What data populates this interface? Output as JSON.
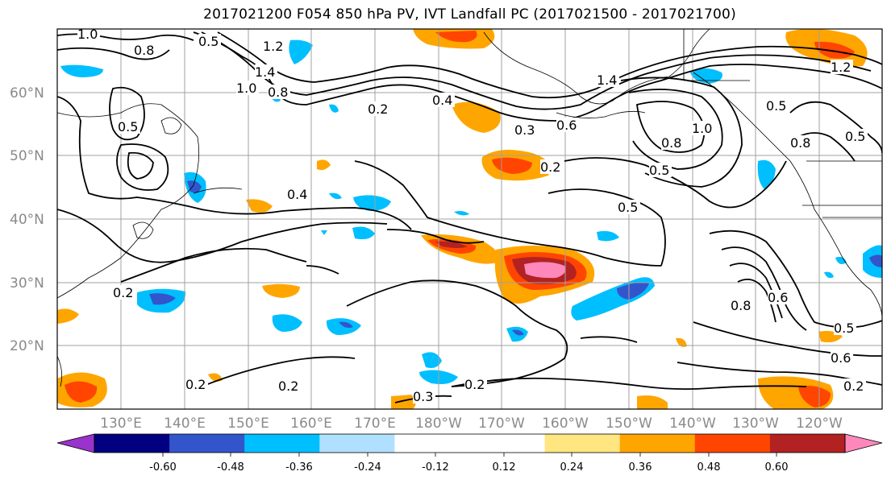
{
  "title": "2017021200 F054 850 hPa PV, IVT Landfall PC (2017021500 - 2017021700)",
  "lat_labels": [
    "60°N",
    "50°N",
    "40°N",
    "30°N",
    "20°N"
  ],
  "lon_labels": [
    "130°E",
    "140°E",
    "150°E",
    "160°E",
    "170°E",
    "180°W",
    "170°W",
    "160°W",
    "150°W",
    "140°W",
    "130°W",
    "120°W"
  ],
  "colorbar": {
    "colors": [
      "#9933cc",
      "#000080",
      "#3355cc",
      "#00bfff",
      "#b0e0ff",
      "#ffffff",
      "#ffffff",
      "#ffe680",
      "#ffa500",
      "#ff4500",
      "#b22222",
      "#ff88bb"
    ],
    "tick_labels": [
      "-0.60",
      "-0.48",
      "-0.36",
      "-0.24",
      "-0.12",
      "0.12",
      "0.24",
      "0.36",
      "0.48",
      "0.60"
    ]
  },
  "contour_labels": [
    "1.0",
    "0.5",
    "0.8",
    "1.2",
    "1.4",
    "1.0",
    "0.8",
    "0.2",
    "0.4",
    "0.3",
    "0.6",
    "1.4",
    "1.2",
    "0.5",
    "1.0",
    "0.8",
    "0.5",
    "0.2",
    "0.4",
    "0.5",
    "0.2",
    "0.2",
    "0.3",
    "0.2",
    "0.2",
    "0.8",
    "0.6",
    "0.5",
    "0.6",
    "0.2",
    "0.5",
    "0.8",
    "0.5"
  ]
}
